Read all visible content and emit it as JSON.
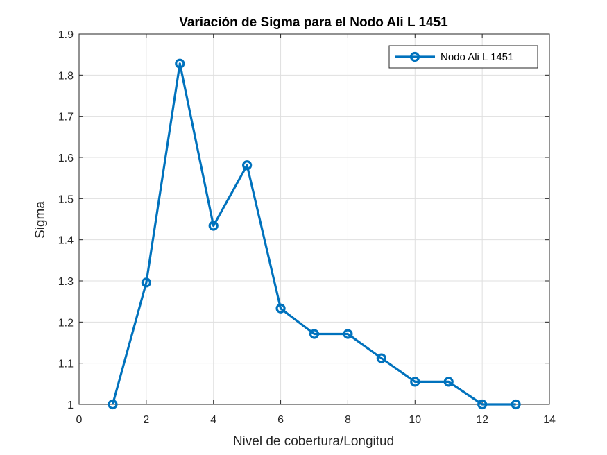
{
  "chart_data": {
    "type": "line",
    "title": "Variación de Sigma para el Nodo Ali L 1451",
    "xlabel": "Nivel de cobertura/Longitud",
    "ylabel": "Sigma",
    "xlim": [
      0,
      14
    ],
    "ylim": [
      1,
      1.9
    ],
    "xticks": [
      0,
      2,
      4,
      6,
      8,
      10,
      12,
      14
    ],
    "yticks": [
      1,
      1.1,
      1.2,
      1.3,
      1.4,
      1.5,
      1.6,
      1.7,
      1.8,
      1.9
    ],
    "xtick_labels": [
      "0",
      "2",
      "4",
      "6",
      "8",
      "10",
      "12",
      "14"
    ],
    "ytick_labels": [
      "1",
      "1.1",
      "1.2",
      "1.3",
      "1.4",
      "1.5",
      "1.6",
      "1.7",
      "1.8",
      "1.9"
    ],
    "grid": true,
    "legend_position": "top-right",
    "series": [
      {
        "name": "Nodo Ali L 1451",
        "color": "#0072BD",
        "marker": "circle",
        "x": [
          1,
          2,
          3,
          4,
          5,
          6,
          7,
          8,
          9,
          10,
          11,
          12,
          13
        ],
        "y": [
          1.0,
          1.296,
          1.828,
          1.434,
          1.581,
          1.233,
          1.171,
          1.171,
          1.112,
          1.055,
          1.055,
          1.0,
          1.0
        ]
      }
    ]
  }
}
